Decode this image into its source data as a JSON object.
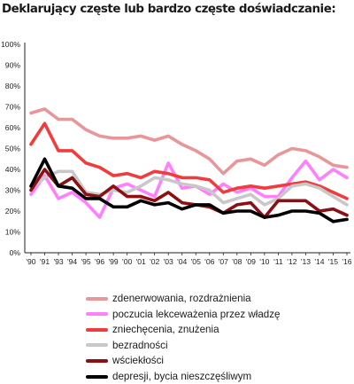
{
  "title": "Deklarujący częste lub bardzo częste doświadczanie:",
  "chart_data": {
    "type": "line",
    "title": "Deklarujący częste lub bardzo częste doświadczanie:",
    "xlabel": "",
    "ylabel": "",
    "ylim": [
      0,
      100
    ],
    "y_ticks": [
      "0%",
      "10%",
      "20%",
      "30%",
      "40%",
      "50%",
      "60%",
      "70%",
      "80%",
      "90%",
      "100%"
    ],
    "x_ticks": [
      "'90",
      "'91",
      "'93",
      "'94",
      "'95",
      "'96",
      "'99",
      "'00",
      "'01",
      "'02",
      "'03",
      "'04",
      "'05",
      "'06",
      "'07",
      "'08",
      "'09",
      "'10",
      "'11",
      "'12",
      "'13",
      "'14",
      "'15",
      "'16"
    ],
    "grid": false,
    "legend_position": "bottom",
    "series": [
      {
        "name": "zdenerwowania, rozdrażnienia",
        "color": "#e8969a",
        "values": [
          67,
          69,
          64,
          64,
          59,
          56,
          55,
          55,
          56,
          54,
          56,
          52,
          49,
          45,
          38,
          44,
          45,
          42,
          47,
          50,
          49,
          46,
          42,
          41
        ]
      },
      {
        "name": "poczucia lekceważenia przez władzę",
        "color": "#ff80ff",
        "values": [
          28,
          37,
          26,
          29,
          24,
          17,
          31,
          33,
          30,
          27,
          43,
          31,
          32,
          28,
          33,
          29,
          31,
          27,
          27,
          36,
          44,
          35,
          40,
          36
        ]
      },
      {
        "name": "zniechęcenia, znużenia",
        "color": "#f03c3c",
        "values": [
          52,
          62,
          49,
          49,
          43,
          41,
          37,
          38,
          36,
          39,
          38,
          36,
          36,
          35,
          29,
          31,
          32,
          31,
          32,
          33,
          34,
          32,
          29,
          26
        ]
      },
      {
        "name": "bezradności",
        "color": "#c8c8c8",
        "values": [
          31,
          36,
          39,
          39,
          29,
          28,
          30,
          29,
          32,
          36,
          35,
          33,
          32,
          30,
          24,
          26,
          28,
          23,
          26,
          32,
          33,
          31,
          27,
          23
        ]
      },
      {
        "name": "wściekłości",
        "color": "#8c0f14",
        "values": [
          30,
          40,
          32,
          36,
          28,
          27,
          32,
          27,
          27,
          25,
          29,
          24,
          23,
          22,
          19,
          23,
          24,
          17,
          25,
          25,
          25,
          20,
          21,
          18
        ]
      },
      {
        "name": "depresji, bycia nieszczęśliwym",
        "color": "#000000",
        "values": [
          32,
          45,
          32,
          31,
          26,
          26,
          22,
          22,
          25,
          23,
          24,
          21,
          23,
          23,
          19,
          20,
          20,
          17,
          18,
          20,
          20,
          19,
          15,
          16
        ]
      }
    ]
  }
}
